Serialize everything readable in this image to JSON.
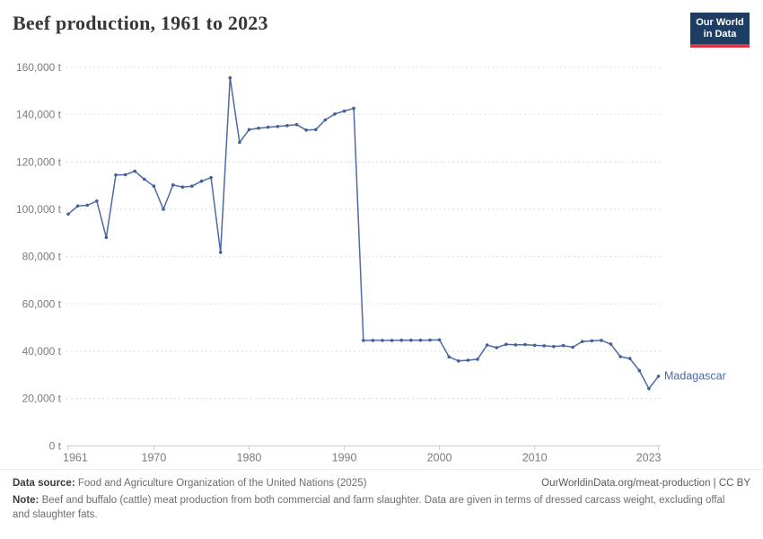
{
  "header": {
    "title": "Beef production, 1961 to 2023",
    "logo_line1": "Our World",
    "logo_line2": "in Data"
  },
  "chart_data": {
    "type": "line",
    "title": "Beef production, 1961 to 2023",
    "unit": "t",
    "grid": "horizontal-dashed",
    "legend_position": "end-of-line-label",
    "ylim": [
      0,
      160000
    ],
    "ytick_interval": 20000,
    "ytick_labels": [
      "0 t",
      "20,000 t",
      "40,000 t",
      "60,000 t",
      "80,000 t",
      "100,000 t",
      "120,000 t",
      "140,000 t",
      "160,000 t"
    ],
    "xticks": [
      1961,
      1970,
      1980,
      1990,
      2000,
      2010,
      2023
    ],
    "x": [
      1961,
      1962,
      1963,
      1964,
      1965,
      1966,
      1967,
      1968,
      1969,
      1970,
      1971,
      1972,
      1973,
      1974,
      1975,
      1976,
      1977,
      1978,
      1979,
      1980,
      1981,
      1982,
      1983,
      1984,
      1985,
      1986,
      1987,
      1988,
      1989,
      1990,
      1991,
      1992,
      1993,
      1994,
      1995,
      1996,
      1997,
      1998,
      1999,
      2000,
      2001,
      2002,
      2003,
      2004,
      2005,
      2006,
      2007,
      2008,
      2009,
      2010,
      2011,
      2012,
      2013,
      2014,
      2015,
      2016,
      2017,
      2018,
      2019,
      2020,
      2021,
      2022,
      2023
    ],
    "series": [
      {
        "name": "Madagascar",
        "values": [
          98000,
          101400,
          101700,
          103500,
          88100,
          114500,
          114600,
          116100,
          112700,
          109800,
          100000,
          110300,
          109400,
          109800,
          111900,
          113400,
          81800,
          155600,
          128300,
          133700,
          134300,
          134700,
          135000,
          135400,
          135800,
          133500,
          133700,
          137800,
          140300,
          141500,
          142700,
          44600,
          44600,
          44600,
          44600,
          44650,
          44650,
          44650,
          44700,
          44800,
          37600,
          35900,
          36200,
          36600,
          42600,
          41500,
          42900,
          42700,
          42800,
          42500,
          42300,
          42000,
          42400,
          41700,
          44100,
          44400,
          44600,
          43000,
          37700,
          36900,
          31800,
          24200,
          29400
        ]
      }
    ]
  },
  "colors": {
    "line": "#4d6ba3",
    "marker": "#41609f",
    "end_label": "#4d6ba3",
    "grid": "#dedede",
    "axis": "#c9c9c9",
    "axis_text": "#7c7c7c",
    "logo_bg": "#1d3d63",
    "logo_red": "#dc3545"
  },
  "footer": {
    "source_label": "Data source:",
    "source_text": "Food and Agriculture Organization of the United Nations (2025)",
    "attribution": "OurWorldinData.org/meat-production | CC BY",
    "note_label": "Note:",
    "note_text": "Beef and buffalo (cattle) meat production from both commercial and farm slaughter. Data are given in terms of dressed carcass weight, excluding offal and slaughter fats."
  }
}
